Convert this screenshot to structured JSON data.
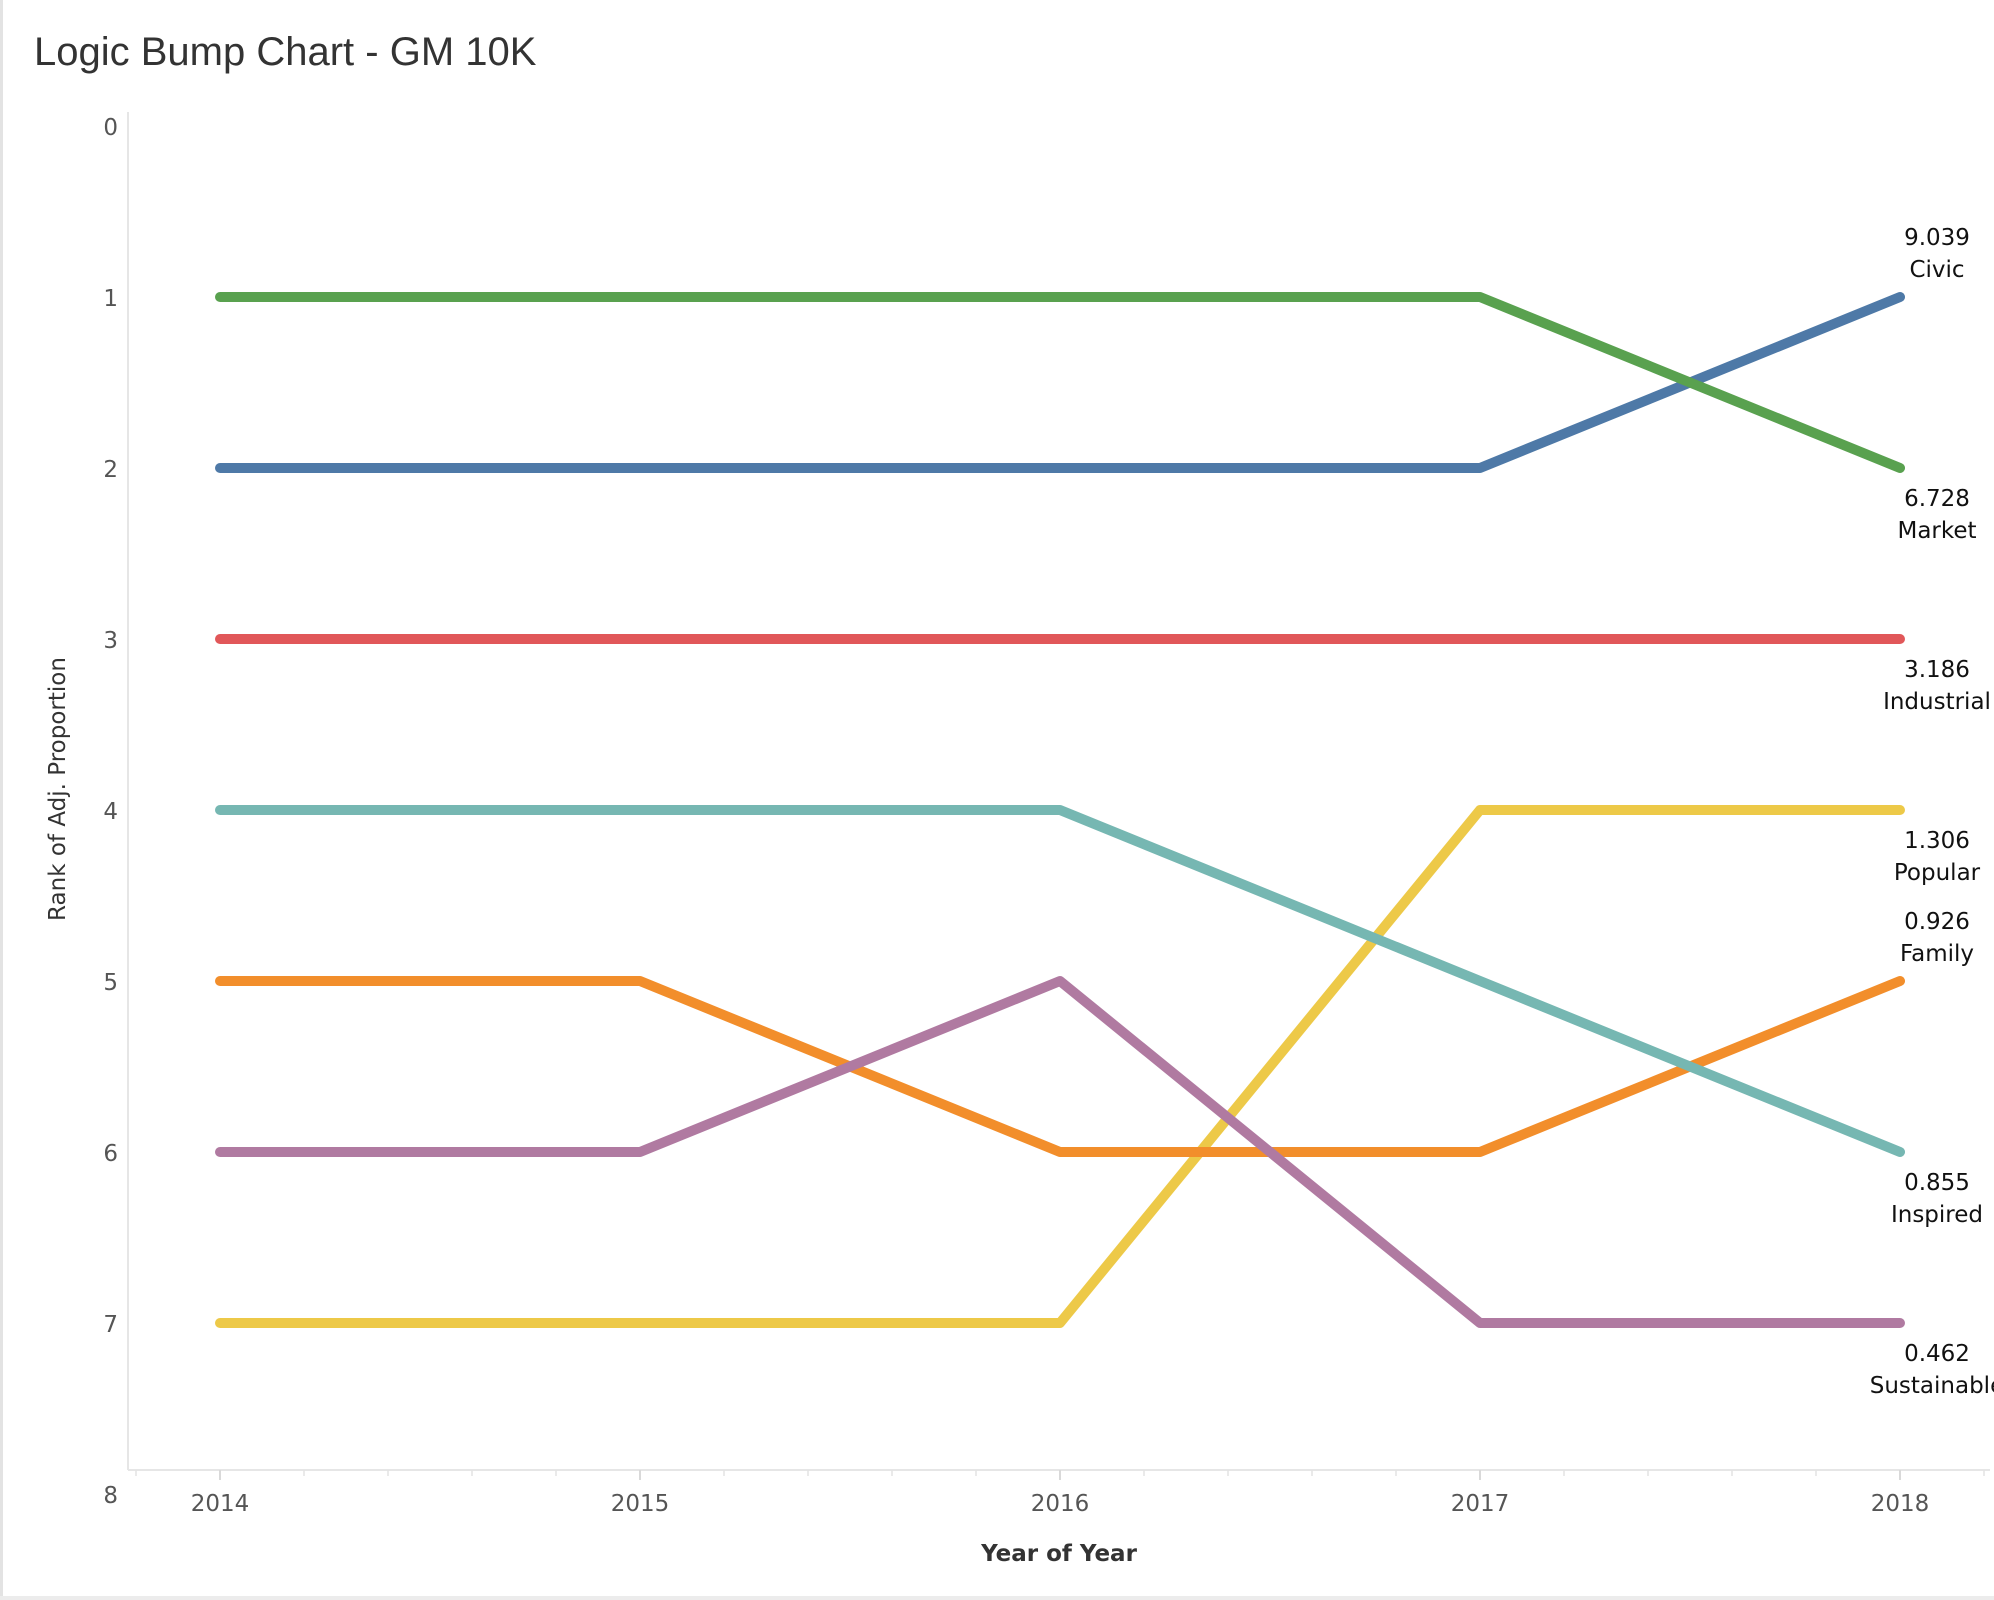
{
  "chart_data": {
    "type": "line",
    "title": "Logic Bump Chart - GM 10K",
    "xlabel": "Year of Year",
    "ylabel": "Rank of Adj. Proportion",
    "x": [
      2014,
      2015,
      2016,
      2017,
      2018
    ],
    "ylim": [
      0,
      8
    ],
    "y_reversed": true,
    "y_ticks": [
      0,
      1,
      2,
      3,
      4,
      5,
      6,
      7,
      8
    ],
    "grid": false,
    "series": [
      {
        "name": "Civic",
        "color": "#4e79a7",
        "values": [
          2,
          2,
          2,
          2,
          1
        ],
        "end_value": "9.039"
      },
      {
        "name": "Market",
        "color": "#59a14f",
        "values": [
          1,
          1,
          1,
          1,
          2
        ],
        "end_value": "6.728"
      },
      {
        "name": "Industrial",
        "color": "#e15759",
        "values": [
          3,
          3,
          3,
          3,
          3
        ],
        "end_value": "3.186"
      },
      {
        "name": "Popular",
        "color": "#edc948",
        "values": [
          7,
          7,
          7,
          4,
          4
        ],
        "end_value": "1.306"
      },
      {
        "name": "Family",
        "color": "#f28e2b",
        "values": [
          5,
          5,
          6,
          6,
          5
        ],
        "end_value": "0.926"
      },
      {
        "name": "Inspired",
        "color": "#76b7b2",
        "values": [
          4,
          4,
          4,
          5,
          6
        ],
        "end_value": "0.855"
      },
      {
        "name": "Sustainable",
        "color": "#b07aa1",
        "values": [
          6,
          6,
          5,
          7,
          7
        ],
        "end_value": "0.462"
      }
    ]
  }
}
